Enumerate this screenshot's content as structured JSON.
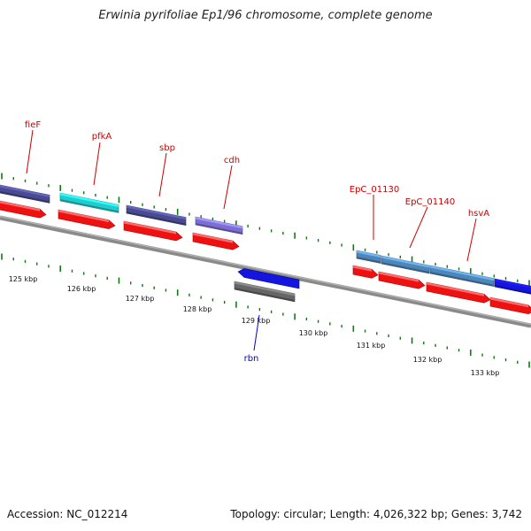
{
  "title": "Erwinia pyrifoliae Ep1/96 chromosome, complete genome",
  "footer": {
    "accession": "Accession: NC_012214",
    "summary": "Topology: circular; Length: 4,026,322 bp; Genes: 3,742"
  },
  "scale": {
    "unit": "kbp",
    "tick_labels": [
      "125 kbp",
      "126 kbp",
      "127 kbp",
      "128 kbp",
      "129 kbp",
      "130 kbp",
      "131 kbp",
      "132 kbp",
      "133 kbp"
    ]
  },
  "gene_labels": [
    {
      "name": "fieF",
      "color": "#cc0000"
    },
    {
      "name": "pfkA",
      "color": "#cc0000"
    },
    {
      "name": "sbp",
      "color": "#cc0000"
    },
    {
      "name": "cdh",
      "color": "#cc0000"
    },
    {
      "name": "EpC_01130",
      "color": "#cc0000"
    },
    {
      "name": "EpC_01140",
      "color": "#cc0000"
    },
    {
      "name": "hsvA",
      "color": "#cc0000"
    },
    {
      "name": "rbn",
      "color": "#0000cc"
    }
  ],
  "colors": {
    "backbone": "#8a8a8a",
    "cds": "#ee1111",
    "tick": "#117711",
    "dark_purple": "#4a4a90",
    "cyan": "#22cccc",
    "light_purple": "#7b6fd6",
    "steel_blue": "#4f86b8",
    "blue": "#1515e0",
    "gray": "#666666"
  }
}
